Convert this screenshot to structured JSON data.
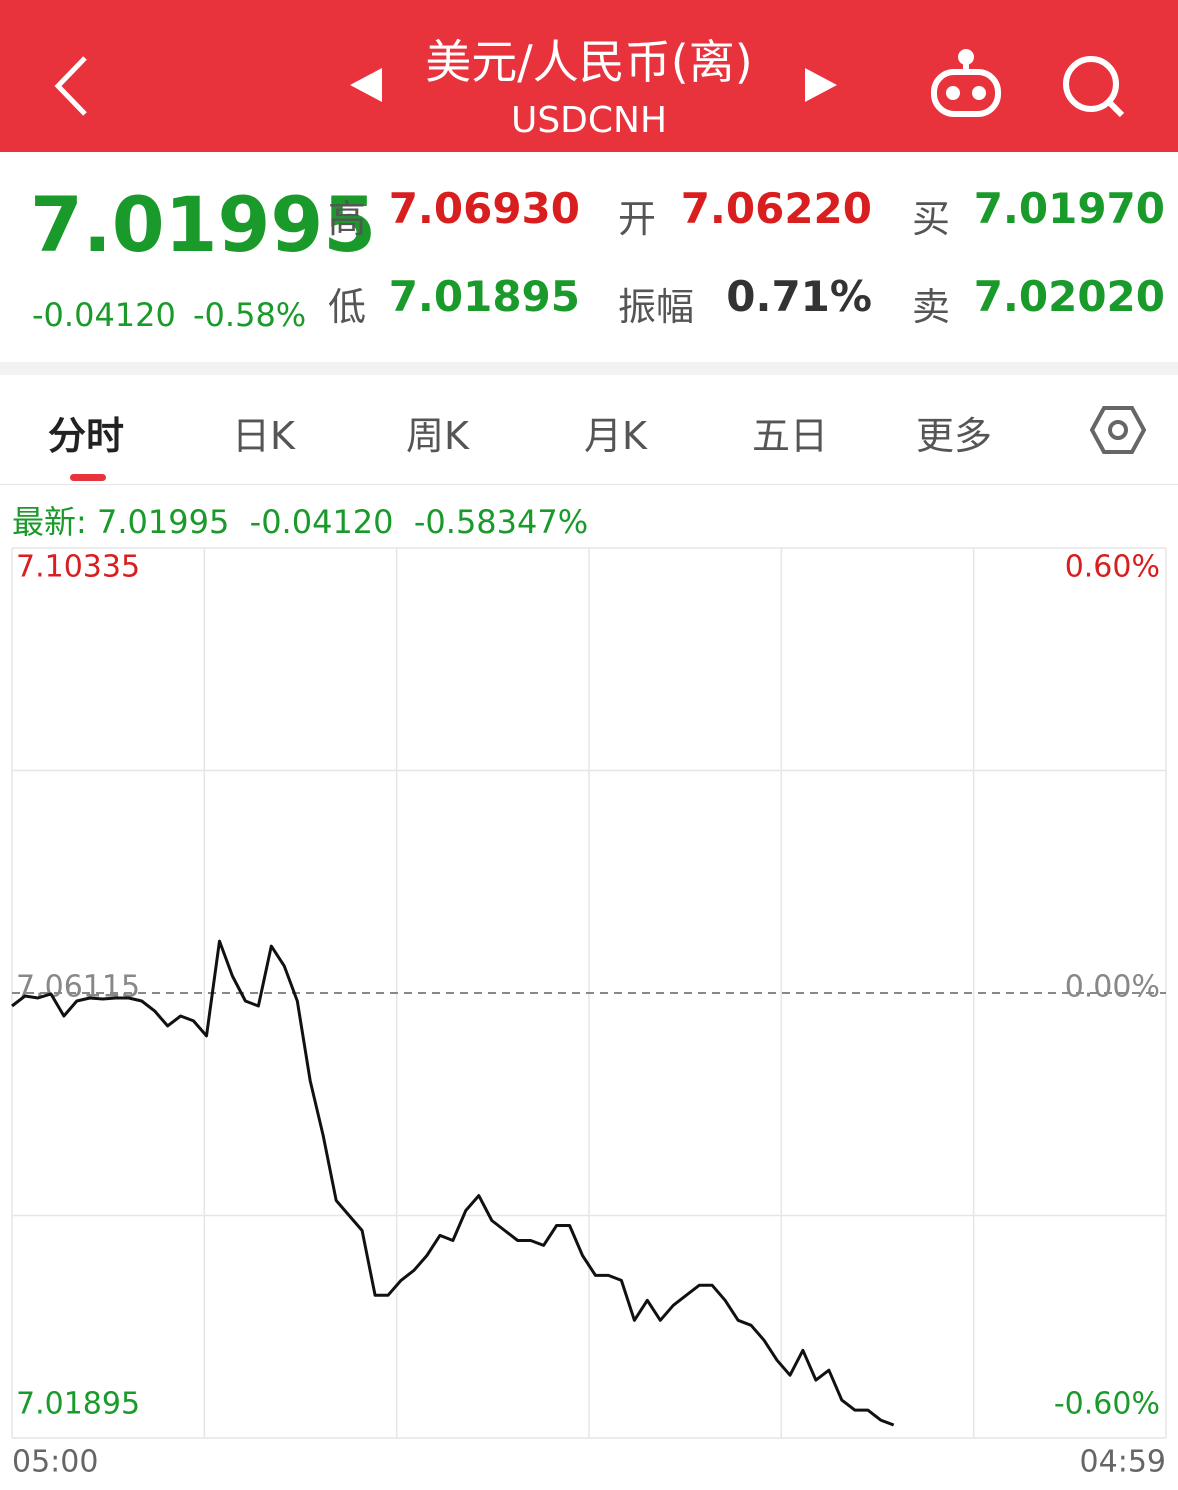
{
  "header": {
    "title": "美元/人民币(离)",
    "subtitle": "USDCNH"
  },
  "quote": {
    "price": "7.01995",
    "change": "-0.04120",
    "change_pct": "-0.58%",
    "fields": [
      {
        "label": "高",
        "value": "7.06930"
      },
      {
        "label": "开",
        "value": "7.06220"
      },
      {
        "label": "买",
        "value": "7.01970"
      },
      {
        "label": "低",
        "value": "7.01895"
      },
      {
        "label": "振幅",
        "value": "0.71%"
      },
      {
        "label": "卖",
        "value": "7.02020"
      }
    ]
  },
  "tabs": [
    "分时",
    "日K",
    "周K",
    "月K",
    "五日",
    "更多"
  ],
  "chart_data": {
    "type": "line",
    "latest": {
      "label": "最新:",
      "price": "7.01995",
      "change": "-0.04120",
      "change_pct": "-0.58347%"
    },
    "x_labels": [
      "05:00",
      "04:59"
    ],
    "color": "#111111",
    "values": [
      7.05992,
      7.06087,
      7.06068,
      7.06106,
      7.05897,
      7.06039,
      7.06068,
      7.06058,
      7.06068,
      7.06068,
      7.06039,
      7.05945,
      7.05803,
      7.05897,
      7.0585,
      7.05708,
      7.06607,
      7.06276,
      7.06039,
      7.05992,
      7.0656,
      7.0637,
      7.06039,
      7.05282,
      7.04762,
      7.04147,
      7.04005,
      7.03863,
      7.03248,
      7.03248,
      7.0339,
      7.03485,
      7.03626,
      7.03816,
      7.03768,
      7.04052,
      7.04194,
      7.03958,
      7.03863,
      7.03768,
      7.03768,
      7.03721,
      7.0391,
      7.0391,
      7.03626,
      7.03437,
      7.03437,
      7.0339,
      7.03011,
      7.03201,
      7.03011,
      7.03153,
      7.03248,
      7.03343,
      7.03343,
      7.03201,
      7.03011,
      7.02964,
      7.02822,
      7.02633,
      7.02491,
      7.02727,
      7.02444,
      7.02538,
      7.02254,
      7.0216,
      7.0216,
      7.02065,
      7.02018,
      null,
      null,
      null,
      null,
      null,
      null,
      null,
      null,
      null,
      null,
      null,
      null,
      null,
      null,
      null,
      null,
      null,
      null,
      null,
      null,
      null
    ],
    "ylim": [
      7.01895,
      7.10335
    ],
    "yticks": [
      7.10335,
      7.06115,
      7.01895
    ],
    "y2lim": [
      -0.6,
      0.6
    ],
    "y2ticks": [
      {
        "value": 0.6,
        "label": "0.60%"
      },
      {
        "value": 0,
        "label": "0.00%"
      },
      {
        "value": -0.6,
        "label": "-0.60%"
      }
    ],
    "grid": true
  }
}
